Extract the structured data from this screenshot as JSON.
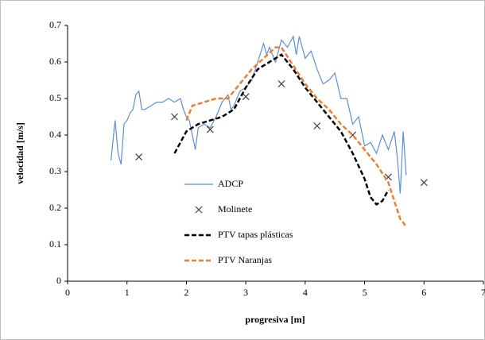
{
  "chart_data": {
    "type": "line",
    "x_label": "progresiva  [m]",
    "y_label": "velocidad  [m/s]",
    "xlim": [
      0,
      7
    ],
    "xticks": [
      0,
      1,
      2,
      3,
      4,
      5,
      6,
      7
    ],
    "ylim": [
      0,
      0.7
    ],
    "yticks": [
      0,
      0.1,
      0.2,
      0.3,
      0.4,
      0.5,
      0.6,
      0.7
    ],
    "grid": false,
    "series": [
      {
        "name": "ADCP",
        "type": "line",
        "color": "#5b8fd6",
        "style": "solid",
        "x": [
          0.73,
          0.8,
          0.85,
          0.9,
          0.95,
          1.0,
          1.05,
          1.1,
          1.15,
          1.2,
          1.25,
          1.3,
          1.4,
          1.5,
          1.6,
          1.7,
          1.8,
          1.9,
          1.95,
          2.0,
          2.05,
          2.1,
          2.15,
          2.2,
          2.3,
          2.4,
          2.5,
          2.6,
          2.7,
          2.75,
          2.8,
          2.9,
          3.0,
          3.1,
          3.2,
          3.3,
          3.35,
          3.4,
          3.5,
          3.6,
          3.7,
          3.8,
          3.85,
          3.9,
          4.0,
          4.1,
          4.2,
          4.3,
          4.4,
          4.5,
          4.6,
          4.7,
          4.8,
          4.9,
          5.0,
          5.1,
          5.2,
          5.3,
          5.4,
          5.5,
          5.55,
          5.6,
          5.65,
          5.7
        ],
        "values": [
          0.33,
          0.44,
          0.35,
          0.32,
          0.43,
          0.44,
          0.46,
          0.47,
          0.51,
          0.52,
          0.47,
          0.47,
          0.48,
          0.49,
          0.49,
          0.5,
          0.49,
          0.5,
          0.47,
          0.45,
          0.44,
          0.4,
          0.36,
          0.42,
          0.43,
          0.42,
          0.45,
          0.49,
          0.51,
          0.47,
          0.48,
          0.52,
          0.53,
          0.55,
          0.6,
          0.65,
          0.62,
          0.64,
          0.6,
          0.66,
          0.64,
          0.67,
          0.62,
          0.67,
          0.61,
          0.63,
          0.58,
          0.54,
          0.55,
          0.57,
          0.5,
          0.5,
          0.43,
          0.45,
          0.37,
          0.38,
          0.35,
          0.4,
          0.36,
          0.41,
          0.34,
          0.24,
          0.41,
          0.29
        ]
      },
      {
        "name": "Molinete",
        "type": "scatter",
        "color": "#404040",
        "marker": "x",
        "x": [
          1.2,
          1.8,
          2.4,
          3.0,
          3.6,
          4.2,
          4.8,
          5.4,
          6.0
        ],
        "values": [
          0.34,
          0.45,
          0.415,
          0.505,
          0.54,
          0.425,
          0.4,
          0.285,
          0.27
        ]
      },
      {
        "name": "PTV tapas plásticas",
        "type": "line",
        "color": "#000000",
        "style": "dashed",
        "x": [
          1.8,
          1.9,
          2.0,
          2.2,
          2.4,
          2.6,
          2.8,
          3.0,
          3.2,
          3.4,
          3.6,
          3.8,
          4.0,
          4.2,
          4.4,
          4.6,
          4.8,
          5.0,
          5.1,
          5.2,
          5.3,
          5.4
        ],
        "values": [
          0.35,
          0.38,
          0.41,
          0.43,
          0.44,
          0.45,
          0.47,
          0.53,
          0.58,
          0.6,
          0.62,
          0.58,
          0.53,
          0.49,
          0.45,
          0.41,
          0.35,
          0.28,
          0.23,
          0.21,
          0.22,
          0.25
        ]
      },
      {
        "name": "PTV Naranjas",
        "type": "line",
        "color": "#ed7d31",
        "style": "dashed",
        "x": [
          2.0,
          2.1,
          2.3,
          2.5,
          2.7,
          2.9,
          3.1,
          3.3,
          3.5,
          3.6,
          3.8,
          4.0,
          4.2,
          4.4,
          4.6,
          4.8,
          5.0,
          5.2,
          5.4,
          5.5,
          5.6,
          5.7
        ],
        "values": [
          0.44,
          0.48,
          0.49,
          0.5,
          0.5,
          0.54,
          0.58,
          0.61,
          0.64,
          0.64,
          0.59,
          0.54,
          0.5,
          0.47,
          0.43,
          0.4,
          0.36,
          0.32,
          0.27,
          0.22,
          0.17,
          0.15
        ]
      }
    ]
  }
}
